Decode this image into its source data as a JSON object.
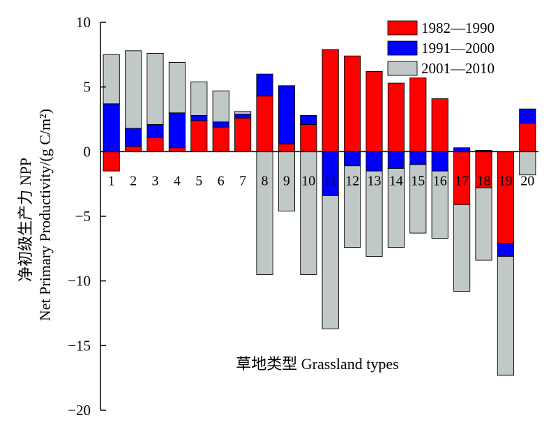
{
  "chart_data": {
    "type": "bar",
    "stacked": true,
    "categories": [
      "1",
      "2",
      "3",
      "4",
      "5",
      "6",
      "7",
      "8",
      "9",
      "10",
      "11",
      "12",
      "13",
      "14",
      "15",
      "16",
      "17",
      "18",
      "19",
      "20"
    ],
    "series": [
      {
        "name": "1982—1990",
        "color": "#ff0000",
        "values": [
          -1.5,
          0.4,
          1.1,
          0.3,
          2.4,
          1.9,
          2.6,
          4.3,
          0.6,
          2.1,
          7.9,
          7.4,
          6.2,
          5.3,
          5.7,
          4.1,
          -4.1,
          -2.8,
          -7.1,
          2.2
        ]
      },
      {
        "name": "1991—2000",
        "color": "#0000ff",
        "values": [
          3.7,
          1.4,
          1.0,
          2.7,
          0.4,
          0.4,
          0.3,
          1.7,
          4.5,
          0.7,
          -3.4,
          -1.1,
          -1.5,
          -1.3,
          -1.0,
          -1.5,
          0.3,
          0.1,
          -1.0,
          1.1
        ]
      },
      {
        "name": "2001—2010",
        "color": "#c0c8c8",
        "values": [
          3.8,
          6.0,
          5.5,
          3.9,
          2.6,
          2.4,
          0.2,
          -9.5,
          -4.6,
          -9.5,
          -10.3,
          -6.3,
          -6.6,
          -6.1,
          -5.3,
          -5.2,
          -6.7,
          -5.6,
          -9.2,
          -1.8
        ]
      }
    ],
    "ylim": [
      -20,
      10
    ],
    "yticks": [
      10,
      5,
      0,
      -5,
      -10,
      -15,
      -20
    ],
    "ylabel_cn": "净初级生产力 NPP",
    "ylabel": "Net Primary Productivity/(g C/m²)",
    "xlabel": "草地类型 Grassland types",
    "legend_position": "top-right",
    "grid": false
  }
}
